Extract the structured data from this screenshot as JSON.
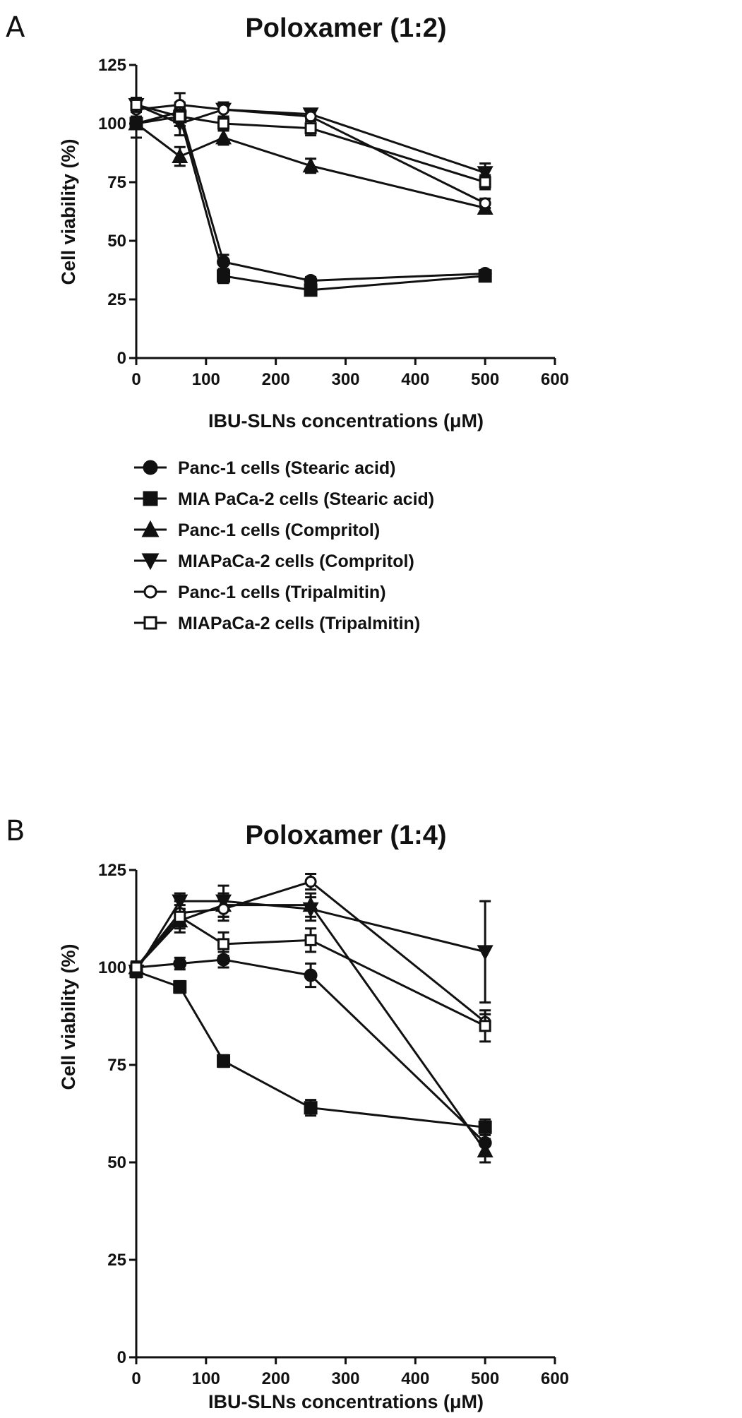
{
  "figure": {
    "legend": [
      {
        "label": "Panc-1 cells (Stearic acid)",
        "marker": "circle-filled"
      },
      {
        "label": "MIA PaCa-2 cells (Stearic acid)",
        "marker": "square-filled"
      },
      {
        "label": "Panc-1 cells (Compritol)",
        "marker": "triangle-up-filled"
      },
      {
        "label": "MIAPaCa-2 cells (Compritol)",
        "marker": "triangle-down-filled"
      },
      {
        "label": "Panc-1 cells (Tripalmitin)",
        "marker": "circle-open"
      },
      {
        "label": "MIAPaCa-2 cells (Tripalmitin)",
        "marker": "square-open"
      }
    ]
  },
  "chart_data": [
    {
      "type": "line",
      "panel": "A",
      "title": "Poloxamer (1:2)",
      "xlabel": "IBU-SLNs concentrations (μM)",
      "ylabel": "Cell viability (%)",
      "xlim": [
        0,
        600
      ],
      "ylim": [
        0,
        125
      ],
      "xticks": [
        0,
        100,
        200,
        300,
        400,
        500,
        600
      ],
      "yticks": [
        0,
        25,
        50,
        75,
        100,
        125
      ],
      "grid": false,
      "x": [
        0,
        62.5,
        125,
        250,
        500
      ],
      "series": [
        {
          "name": "Panc-1 cells (Stearic acid)",
          "marker": "circle-filled",
          "values": [
            100,
            105,
            41,
            33,
            36
          ],
          "errors": [
            2,
            4,
            3,
            1.5,
            1.5
          ]
        },
        {
          "name": "MIA PaCa-2 cells (Stearic acid)",
          "marker": "square-filled",
          "values": [
            100,
            103,
            35,
            29,
            35
          ],
          "errors": [
            2,
            4,
            3,
            1.5,
            1.5
          ]
        },
        {
          "name": "Panc-1 cells (Compritol)",
          "marker": "triangle-up-filled",
          "values": [
            100,
            86,
            94,
            82,
            64
          ],
          "errors": [
            6,
            4,
            3,
            3,
            2
          ]
        },
        {
          "name": "MIAPaCa-2 cells (Compritol)",
          "marker": "triangle-down-filled",
          "values": [
            108,
            100,
            106,
            104,
            79
          ],
          "errors": [
            3,
            5,
            3,
            2,
            4
          ]
        },
        {
          "name": "Panc-1 cells (Tripalmitin)",
          "marker": "circle-open",
          "values": [
            106,
            108,
            106,
            103,
            66
          ],
          "errors": [
            3,
            5,
            3,
            3,
            2
          ]
        },
        {
          "name": "MIAPaCa-2 cells (Tripalmitin)",
          "marker": "square-open",
          "values": [
            108,
            103,
            100,
            98,
            75
          ],
          "errors": [
            3,
            4,
            3,
            3,
            3
          ]
        }
      ]
    },
    {
      "type": "line",
      "panel": "B",
      "title": "Poloxamer (1:4)",
      "xlabel": "IBU-SLNs concentrations (μM)",
      "ylabel": "Cell viability (%)",
      "xlim": [
        0,
        600
      ],
      "ylim": [
        0,
        125
      ],
      "xticks": [
        0,
        100,
        200,
        300,
        400,
        500,
        600
      ],
      "yticks": [
        0,
        25,
        50,
        75,
        100,
        125
      ],
      "grid": false,
      "x": [
        0,
        62.5,
        125,
        250,
        500
      ],
      "series": [
        {
          "name": "Panc-1 cells (Stearic acid)",
          "marker": "circle-filled",
          "values": [
            100,
            101,
            102,
            98,
            55
          ],
          "errors": [
            1.5,
            1.5,
            2,
            3,
            3
          ]
        },
        {
          "name": "MIA PaCa-2 cells (Stearic acid)",
          "marker": "square-filled",
          "values": [
            99,
            95,
            76,
            64,
            59
          ],
          "errors": [
            1.5,
            1.5,
            1.5,
            2,
            2
          ]
        },
        {
          "name": "Panc-1 cells (Compritol)",
          "marker": "triangle-up-filled",
          "values": [
            100,
            112,
            116,
            116,
            53
          ],
          "errors": [
            1.5,
            3,
            3,
            3,
            3
          ]
        },
        {
          "name": "MIAPaCa-2 cells (Compritol)",
          "marker": "triangle-down-filled",
          "values": [
            99,
            117,
            117,
            115,
            104
          ],
          "errors": [
            1.5,
            2,
            4,
            3,
            13
          ]
        },
        {
          "name": "Panc-1 cells (Tripalmitin)",
          "marker": "circle-open",
          "values": [
            100,
            114,
            115,
            122,
            86
          ],
          "errors": [
            1.5,
            3,
            3,
            2,
            2
          ]
        },
        {
          "name": "MIAPaCa-2 cells (Tripalmitin)",
          "marker": "square-open",
          "values": [
            100,
            113,
            106,
            107,
            85
          ],
          "errors": [
            1.5,
            3,
            3,
            3,
            4
          ]
        }
      ]
    }
  ]
}
